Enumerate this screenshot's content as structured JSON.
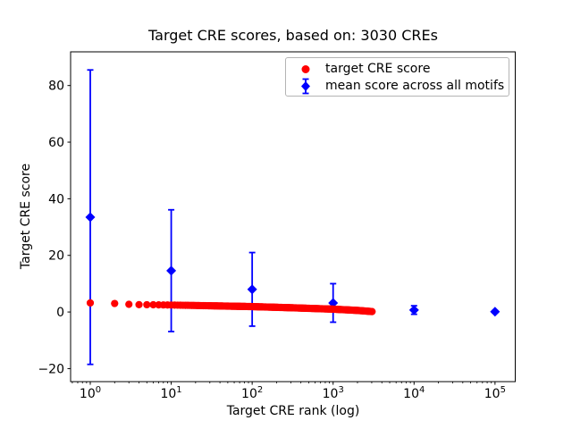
{
  "window": {
    "title": "Target CRE scores, based on: 3030 CREs"
  },
  "chart_data": {
    "type": "scatter",
    "title": "Target CRE scores, based on: 3030 CREs",
    "xlabel": "Target CRE rank (log)",
    "ylabel": "Target CRE score",
    "x_scale": "log",
    "grid": false,
    "xlim_log10": [
      -0.243,
      5.25
    ],
    "ylim": [
      -24.6,
      91.9
    ],
    "x_tick_exponents": [
      0,
      1,
      2,
      3,
      4,
      5
    ],
    "x_tick_base": "10",
    "y_ticks": [
      -20,
      0,
      20,
      40,
      60,
      80
    ],
    "legend_position": "upper right",
    "colors": {
      "target": "#ff0000",
      "mean": "#0000ff",
      "spine": "#000000",
      "legend_border": "#b4b4b4"
    },
    "series": [
      {
        "name": "target CRE score",
        "marker": "circle",
        "color": "#ff0000",
        "n_points": 3030,
        "x_range": [
          1,
          3030
        ],
        "sampled_points": [
          [
            1,
            3.2
          ],
          [
            2,
            3.0
          ],
          [
            3,
            2.7
          ],
          [
            4,
            2.6
          ],
          [
            6,
            2.55
          ],
          [
            10,
            2.45
          ],
          [
            30,
            2.2
          ],
          [
            100,
            1.9
          ],
          [
            300,
            1.5
          ],
          [
            1000,
            1.0
          ],
          [
            2000,
            0.55
          ],
          [
            3030,
            0.15
          ]
        ]
      },
      {
        "name": "mean score across all motifs",
        "marker": "diamond",
        "color": "#0000ff",
        "x": [
          1,
          10,
          100,
          1000,
          10000,
          100000
        ],
        "y": [
          33.5,
          14.6,
          8.0,
          3.2,
          0.7,
          0.1
        ],
        "yerr": [
          52.0,
          21.5,
          13.0,
          6.8,
          1.5,
          0.4
        ]
      }
    ]
  }
}
